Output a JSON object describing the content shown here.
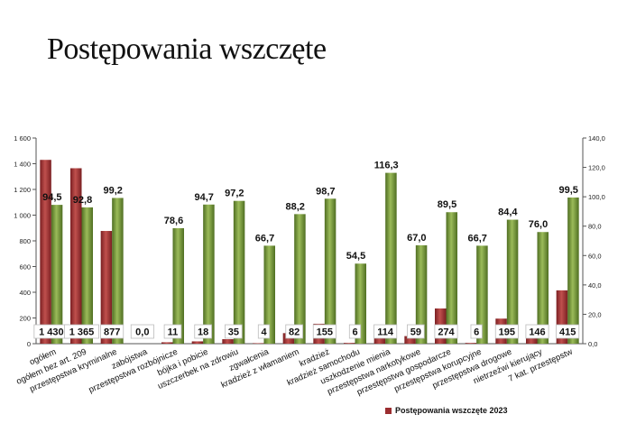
{
  "page": {
    "title": "Postępowania wszczęte"
  },
  "chart_data": {
    "type": "bar",
    "title": "Postępowania wszczęte",
    "categories": [
      "ogółem",
      "ogółem bez art. 209",
      "przestępstwa kryminalne",
      "zabójstwa",
      "przestępstwa rozbójnicze",
      "bójka i pobicie",
      "uszczerbek na zdrowiu",
      "zgwałcenia",
      "kradzież z włamaniem",
      "kradzież",
      "kradzież samochodu",
      "uszkodzenie mienia",
      "przestępstwa narkotykowe",
      "przestępstwa gospodarcze",
      "przestępstwa korupcyjne",
      "przestępstwa drogowe",
      "nietrzeźwi kierujący",
      "7 kat. przestępstw"
    ],
    "series": [
      {
        "name": "Postępowania wszczęte 2023",
        "axis": "left",
        "color": "#9b2d30",
        "values": [
          1430,
          1365,
          877,
          0,
          11,
          18,
          35,
          4,
          82,
          155,
          6,
          114,
          59,
          274,
          6,
          195,
          146,
          415
        ],
        "labels": [
          "1 430",
          "1 365",
          "877",
          "0,0",
          "11",
          "18",
          "35",
          "4",
          "82",
          "155",
          "6",
          "114",
          "59",
          "274",
          "6",
          "195",
          "146",
          "415"
        ]
      },
      {
        "axis": "right",
        "color": "#7ea83a",
        "values": [
          94.5,
          92.8,
          99.2,
          0,
          78.6,
          94.7,
          97.2,
          66.7,
          88.2,
          98.7,
          54.5,
          116.3,
          67.0,
          89.5,
          66.7,
          84.4,
          76.0,
          99.5
        ],
        "labels": [
          "94,5",
          "92,8",
          "99,2",
          "",
          "78,6",
          "94,7",
          "97,2",
          "66,7",
          "88,2",
          "98,7",
          "54,5",
          "116,3",
          "67,0",
          "89,5",
          "66,7",
          "84,4",
          "76,0",
          "99,5"
        ]
      }
    ],
    "y_left": {
      "range": [
        0,
        1600
      ],
      "ticks": [
        "0",
        "200",
        "400",
        "600",
        "800",
        "1 000",
        "1 200",
        "1 400",
        "1 600"
      ]
    },
    "y_right": {
      "range": [
        0,
        140
      ],
      "ticks": [
        "0,0",
        "20,0",
        "40,0",
        "60,0",
        "80,0",
        "100,0",
        "120,0",
        "140,0"
      ]
    },
    "grid": false,
    "legend": {
      "position": "bottom-right",
      "entries": [
        "Postępowania wszczęte 2023"
      ]
    }
  }
}
